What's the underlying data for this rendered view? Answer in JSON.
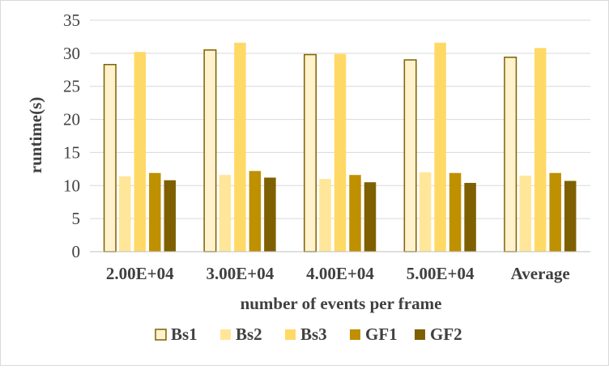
{
  "chart_data": {
    "type": "bar",
    "title": "",
    "xlabel": "number of events per frame",
    "ylabel": "runtime(s)",
    "ylim": [
      0,
      35
    ],
    "yticks": [
      0,
      5,
      10,
      15,
      20,
      25,
      30,
      35
    ],
    "grid": "horizontal",
    "legend_position": "bottom",
    "categories": [
      "2.00E+04",
      "3.00E+04",
      "4.00E+04",
      "5.00E+04",
      "Average"
    ],
    "series": [
      {
        "name": "Bs1",
        "fill": "#fff2cc",
        "stroke": "#7f6000",
        "values": [
          28.3,
          30.5,
          29.8,
          29.0,
          29.4
        ]
      },
      {
        "name": "Bs2",
        "fill": "#ffe699",
        "stroke": "none",
        "values": [
          11.4,
          11.6,
          11.0,
          12.0,
          11.5
        ]
      },
      {
        "name": "Bs3",
        "fill": "#ffd966",
        "stroke": "none",
        "values": [
          30.2,
          31.6,
          29.9,
          31.6,
          30.8
        ]
      },
      {
        "name": "GF1",
        "fill": "#bf9000",
        "stroke": "none",
        "values": [
          11.9,
          12.2,
          11.6,
          11.9,
          11.9
        ]
      },
      {
        "name": "GF2",
        "fill": "#7f6000",
        "stroke": "none",
        "values": [
          10.8,
          11.2,
          10.5,
          10.4,
          10.7
        ]
      }
    ]
  }
}
